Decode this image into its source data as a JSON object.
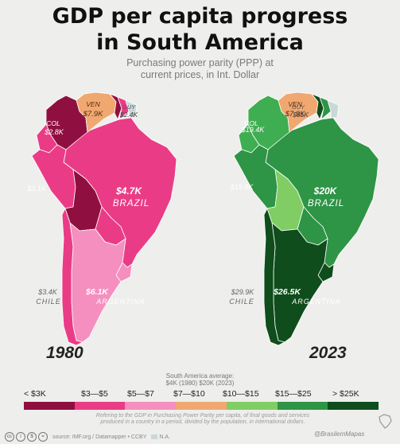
{
  "title_line1": "GDP per capita progress",
  "title_line2": "in South America",
  "subtitle_line1": "Purchasing power parity (PPP) at",
  "subtitle_line2": "current prices, in Int. Dollar",
  "maps": [
    {
      "year": "1980",
      "regions": {
        "colombia": {
          "label": "COL",
          "value": "$2.8K",
          "color": "#8f1040"
        },
        "venezuela": {
          "label": "VEN",
          "value": "$7.9K",
          "color": "#f0a870"
        },
        "guyana": {
          "label": "GUY",
          "value": "$2.4K",
          "color": "#8f1040"
        },
        "suriname": {
          "color": "#ea3c86"
        },
        "french_guiana": {
          "color": "#c9d9d9"
        },
        "ecuador": {
          "color": "#ea3c86"
        },
        "peru": {
          "value": "$3.1K",
          "color": "#ea3c86"
        },
        "brazil": {
          "label": "BRAZIL",
          "value": "$4.7K",
          "color": "#ea3c86"
        },
        "bolivia": {
          "color": "#8f1040"
        },
        "paraguay": {
          "color": "#ea3c86"
        },
        "uruguay": {
          "color": "#f58fbf"
        },
        "chile": {
          "label": "CHILE",
          "value": "$3.4K",
          "color": "#ea3c86"
        },
        "argentina": {
          "label": "ARGENTINA",
          "value": "$6.1K",
          "color": "#f58fbf"
        }
      }
    },
    {
      "year": "2023",
      "regions": {
        "colombia": {
          "label": "COL",
          "value": "$19.4K",
          "color": "#3fae52"
        },
        "venezuela": {
          "label": "VEN",
          "value": "$7.9K",
          "color": "#f0a870"
        },
        "guyana": {
          "label": "GUY",
          "value": "$61K",
          "color": "#0f4d1c"
        },
        "suriname": {
          "color": "#2e9446"
        },
        "french_guiana": {
          "color": "#c9d9d9"
        },
        "ecuador": {
          "color": "#3fae52"
        },
        "peru": {
          "value": "$15.8K",
          "color": "#2e9446"
        },
        "brazil": {
          "label": "BRAZIL",
          "value": "$20K",
          "color": "#2e9446"
        },
        "bolivia": {
          "color": "#7fcd63"
        },
        "paraguay": {
          "color": "#2e9446"
        },
        "uruguay": {
          "color": "#0f4d1c"
        },
        "chile": {
          "label": "CHILE",
          "value": "$29.9K",
          "color": "#0f4d1c"
        },
        "argentina": {
          "label": "ARGENTINA",
          "value": "$26.5K",
          "color": "#0f4d1c"
        }
      }
    }
  ],
  "average_line1": "South America average:",
  "average_line2": "$4K (1980) $20K (2023)",
  "legend": [
    {
      "label": "< $3K",
      "color": "#8f1040"
    },
    {
      "label": "$3—$5",
      "color": "#ea3c86"
    },
    {
      "label": "$5—$7",
      "color": "#f58fbf"
    },
    {
      "label": "$7—$10",
      "color": "#f0a870"
    },
    {
      "label": "$10—$15",
      "color": "#7fcd63"
    },
    {
      "label": "$15—$25",
      "color": "#2e9446"
    },
    {
      "label": "> $25K",
      "color": "#0f4d1c"
    }
  ],
  "note": "Refering to the GDP in Purchasing Power Parity per capita, of final goods and services produced in a country in a period, divided by the population, in international dollars.",
  "source": "source: IMF.org / Datamapper • CCBY",
  "na_label": "N.A.",
  "na_color": "#c9d9d9",
  "handle": "@BrasilemMapas"
}
